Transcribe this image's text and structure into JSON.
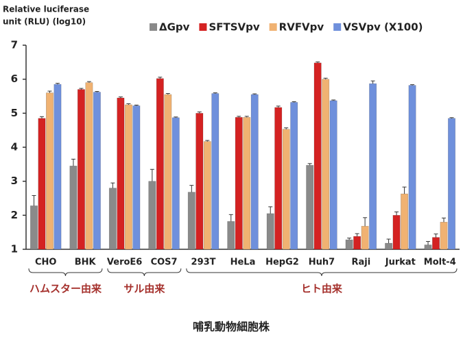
{
  "chart_data": {
    "type": "bar",
    "title": "哺乳動物細胞株",
    "ylabel": [
      "Relative luciferase",
      "unit (RLU) (log10)"
    ],
    "categories": [
      "CHO",
      "BHK",
      "VeroE6",
      "COS7",
      "293T",
      "HeLa",
      "HepG2",
      "Huh7",
      "Raji",
      "Jurkat",
      "Molt-4"
    ],
    "groups": [
      {
        "label": "ハムスター由来",
        "categories": [
          "CHO",
          "BHK"
        ]
      },
      {
        "label": "サル由来",
        "categories": [
          "VeroE6",
          "COS7"
        ]
      },
      {
        "label": "ヒト由来",
        "categories": [
          "293T",
          "HeLa",
          "HepG2",
          "Huh7",
          "Raji",
          "Jurkat",
          "Molt-4"
        ]
      }
    ],
    "series": [
      {
        "name": "ΔGpv",
        "color": "#8a8a8a",
        "values": [
          2.28,
          3.45,
          2.8,
          3.0,
          2.68,
          1.82,
          2.05,
          3.47,
          1.28,
          1.18,
          1.13
        ],
        "errors": [
          0.3,
          0.2,
          0.15,
          0.35,
          0.2,
          0.2,
          0.2,
          0.05,
          0.05,
          0.12,
          0.1
        ]
      },
      {
        "name": "SFTSVpv",
        "color": "#d42222",
        "values": [
          4.85,
          5.7,
          5.45,
          6.02,
          5.0,
          4.88,
          5.17,
          6.48,
          1.38,
          2.0,
          1.35
        ],
        "errors": [
          0.05,
          0.03,
          0.03,
          0.04,
          0.04,
          0.03,
          0.04,
          0.03,
          0.08,
          0.1,
          0.1
        ]
      },
      {
        "name": "RVFVpv",
        "color": "#f0b272",
        "values": [
          5.6,
          5.9,
          5.25,
          5.55,
          4.17,
          4.88,
          4.53,
          6.0,
          1.68,
          2.63,
          1.8
        ],
        "errors": [
          0.05,
          0.03,
          0.03,
          0.03,
          0.03,
          0.03,
          0.04,
          0.03,
          0.25,
          0.2,
          0.12
        ]
      },
      {
        "name": "VSVpv (X100)",
        "color": "#6f90dc",
        "values": [
          5.85,
          5.62,
          5.22,
          4.87,
          5.58,
          5.55,
          5.32,
          5.37,
          5.87,
          5.82,
          4.85
        ],
        "errors": [
          0.03,
          0.02,
          0.02,
          0.02,
          0.02,
          0.02,
          0.02,
          0.02,
          0.08,
          0.02,
          0.02
        ]
      }
    ],
    "ylim": [
      1,
      7
    ],
    "yticks": [
      1,
      2,
      3,
      4,
      5,
      6,
      7
    ]
  }
}
